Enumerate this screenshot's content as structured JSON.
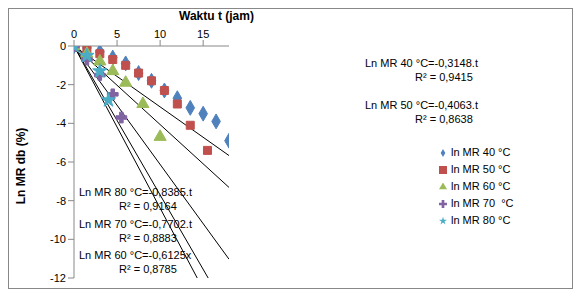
{
  "chart_data": {
    "type": "scatter",
    "x_label": "Waktu t (jam)",
    "y_label": "Ln MR db (%)",
    "xlim": [
      0,
      18
    ],
    "xticks": [
      0,
      5,
      10,
      15
    ],
    "ylim": [
      -12,
      0
    ],
    "yticks": [
      -12,
      -10,
      -8,
      -6,
      -4,
      -2,
      0
    ],
    "grid": false,
    "legend": "right",
    "series": [
      {
        "name": "ln MR 40 °C",
        "color": "#4f81bd",
        "marker": "diamond",
        "x": [
          0,
          1.5,
          3,
          4.5,
          6,
          7.5,
          9,
          10.5,
          12,
          13.5,
          15,
          16.5,
          18
        ],
        "values": [
          0,
          -0.1,
          -0.3,
          -0.6,
          -0.9,
          -1.4,
          -1.8,
          -2.3,
          -2.7,
          -3.2,
          -3.5,
          -3.9,
          -4.9
        ],
        "trendline": {
          "slope": -0.3148,
          "equation": "Ln MR 40 °C=-0,3148.t",
          "r2_label": "R² = 0,9415"
        }
      },
      {
        "name": "ln MR 50 °C",
        "color": "#c0504d",
        "marker": "square",
        "x": [
          0,
          1.5,
          3,
          4.5,
          6,
          7.5,
          9,
          10.5,
          12,
          13.5,
          15.5
        ],
        "values": [
          0,
          -0.2,
          -0.4,
          -0.7,
          -1.0,
          -1.4,
          -1.8,
          -2.3,
          -3.0,
          -4.1,
          -5.4
        ],
        "trendline": {
          "slope": -0.4063,
          "equation": "Ln MR 50 °C=-0,4063.t",
          "r2_label": "R² = 0,8638"
        }
      },
      {
        "name": "ln MR 60 °C",
        "color": "#9bbb59",
        "marker": "triangle",
        "x": [
          0,
          1.5,
          3,
          4.5,
          6,
          8,
          10
        ],
        "values": [
          0,
          -0.4,
          -0.8,
          -1.3,
          -1.9,
          -3.0,
          -4.7
        ],
        "trendline": {
          "slope": -0.6125,
          "equation": "Ln MR 60 °C=-0,6125x",
          "r2_label": "R² = 0,8785"
        }
      },
      {
        "name": "ln MR 70  °C",
        "color": "#8064a2",
        "marker": "cross",
        "x": [
          0,
          1.5,
          3,
          4.5,
          5.5
        ],
        "values": [
          0,
          -0.7,
          -1.5,
          -2.5,
          -3.7
        ],
        "trendline": {
          "slope": -0.7702,
          "equation": "Ln MR 70 °C=-0,7702.t",
          "r2_label": "R² = 0,8883"
        }
      },
      {
        "name": "ln MR 80 °C",
        "color": "#4bacc6",
        "marker": "star",
        "x": [
          0,
          1.5,
          3,
          4
        ],
        "values": [
          0,
          -0.5,
          -1.3,
          -2.8
        ],
        "trendline": {
          "slope": -0.8385,
          "equation": "Ln MR 80 °C=-0,8385.t",
          "r2_label": "R² = 0,9164"
        }
      }
    ]
  }
}
